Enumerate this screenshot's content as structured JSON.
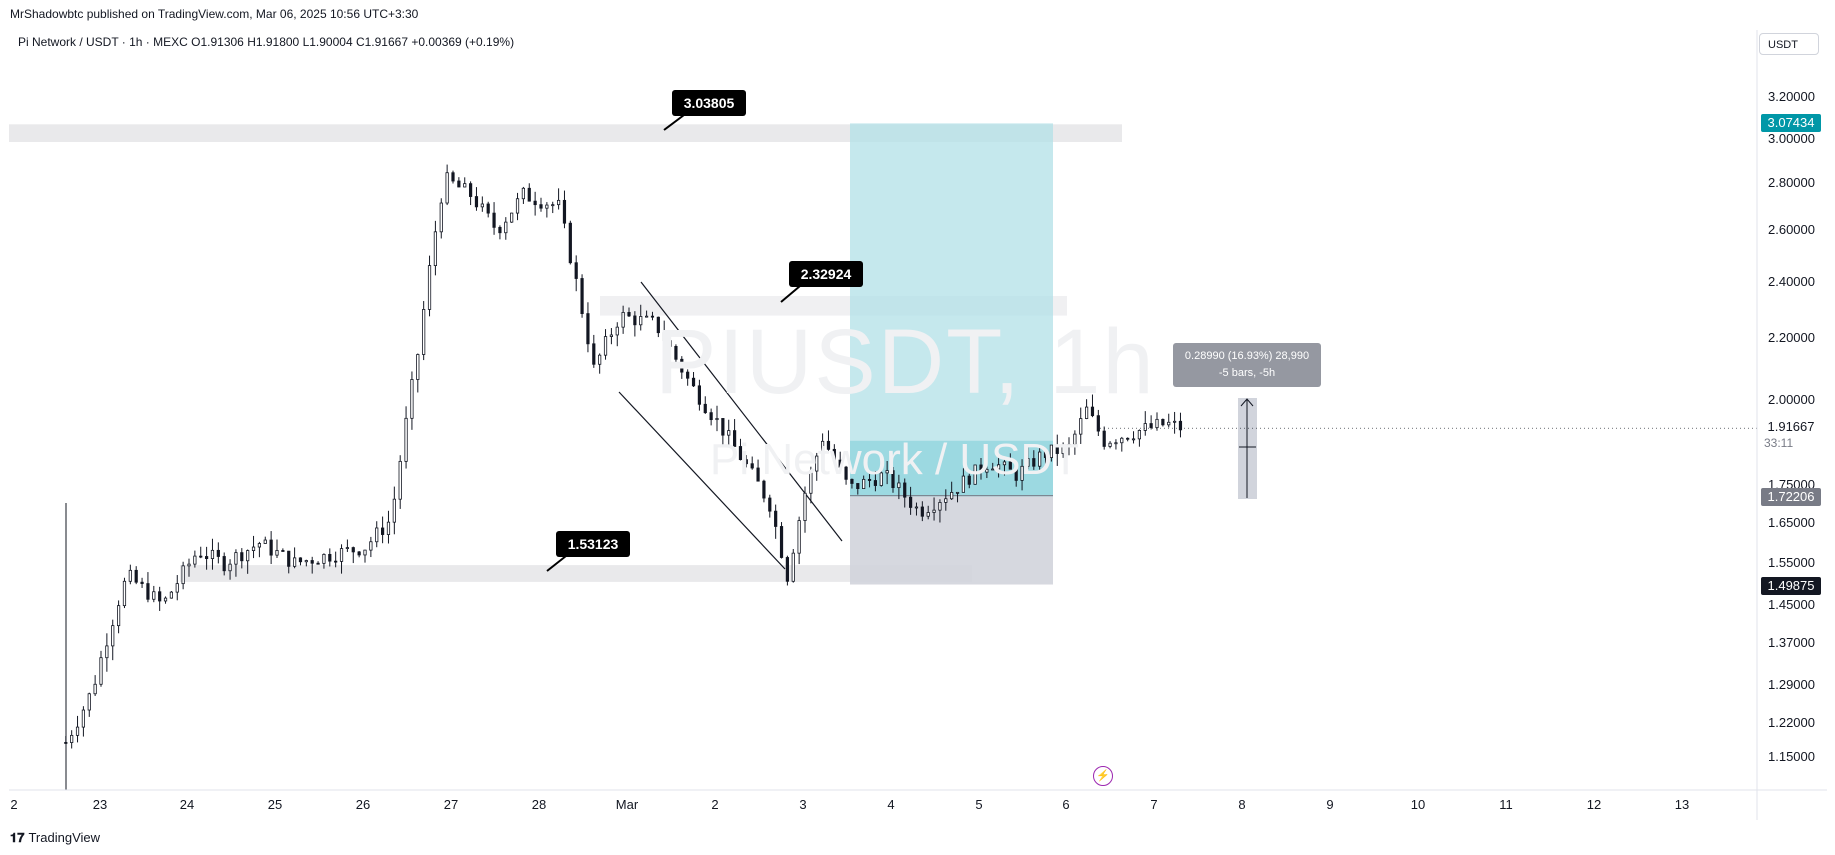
{
  "publisher": "MrShadowbtc published on TradingView.com, Mar 06, 2025 10:56 UTC+3:30",
  "symbol_line": "Pi Network / USDT · 1h · MEXC  O1.91306  H1.91800  L1.90004  C1.91667  +0.00369 (+0.19%)",
  "currency": "USDT",
  "watermark": {
    "ticker": "PIUSDT, 1h",
    "name": "Pi Network / USDT"
  },
  "callouts": {
    "top": "3.03805",
    "mid": "2.32924",
    "low": "1.53123"
  },
  "measure": {
    "line1": "0.28990 (16.93%) 28,990",
    "line2": "-5 bars, -5h"
  },
  "price_labels": {
    "target": "3.07434",
    "current": "1.91667",
    "entry": "1.72206",
    "stop": "1.49875",
    "countdown": "33:11"
  },
  "colors": {
    "target_bg": "#0097a7",
    "entry_bg": "#787b86",
    "stop_bg": "#131722",
    "profit_zone": "#b2e0e7",
    "loss_zone": "#d1d4dc",
    "sr_zone": "#e9e9eb",
    "candle": "#131722"
  },
  "icons": {
    "alert": "lightning-bolt-icon"
  },
  "footer": {
    "brand": "TradingView"
  },
  "chart_data": {
    "type": "candlestick",
    "title": "",
    "y_axis_ticks": [
      "3.20000",
      "3.00000",
      "2.80000",
      "2.60000",
      "2.40000",
      "2.20000",
      "2.00000",
      "1.75000",
      "1.65000",
      "1.55000",
      "1.45000",
      "1.37000",
      "1.29000",
      "1.22000",
      "1.15000"
    ],
    "x_axis_ticks": [
      "2",
      "23",
      "24",
      "25",
      "26",
      "27",
      "28",
      "Mar",
      "2",
      "3",
      "4",
      "5",
      "6",
      "7",
      "8",
      "9",
      "10",
      "11",
      "12",
      "13"
    ],
    "price_path": [
      [
        22.6,
        1.18
      ],
      [
        22.9,
        1.28
      ],
      [
        23.3,
        1.52
      ],
      [
        23.7,
        1.45
      ],
      [
        24.1,
        1.58
      ],
      [
        24.4,
        1.55
      ],
      [
        24.8,
        1.6
      ],
      [
        25.2,
        1.55
      ],
      [
        25.6,
        1.57
      ],
      [
        26.0,
        1.59
      ],
      [
        26.3,
        1.66
      ],
      [
        26.6,
        2.15
      ],
      [
        26.9,
        2.82
      ],
      [
        27.2,
        2.75
      ],
      [
        27.5,
        2.6
      ],
      [
        27.8,
        2.75
      ],
      [
        28.2,
        2.7
      ],
      [
        28.6,
        2.1
      ],
      [
        28.9,
        2.28
      ],
      [
        29.3,
        2.25
      ],
      [
        29.7,
        2.05
      ],
      [
        30.1,
        1.9
      ],
      [
        30.6,
        1.7
      ],
      [
        30.8,
        1.52
      ],
      [
        31.0,
        1.73
      ],
      [
        31.2,
        1.89
      ],
      [
        31.5,
        1.74
      ],
      [
        31.9,
        1.78
      ],
      [
        32.3,
        1.68
      ],
      [
        32.7,
        1.74
      ],
      [
        33.1,
        1.82
      ],
      [
        33.4,
        1.78
      ],
      [
        33.7,
        1.84
      ],
      [
        34.0,
        1.86
      ],
      [
        34.2,
        1.97
      ],
      [
        34.4,
        1.88
      ],
      [
        34.8,
        1.91
      ],
      [
        35.1,
        1.93
      ],
      [
        35.3,
        1.917
      ]
    ],
    "levels": {
      "resistance": 3.03805,
      "mid_zone": 2.32924,
      "support": 1.53123
    },
    "position": {
      "target": 3.07434,
      "entry": 1.72206,
      "stop": 1.49875
    }
  }
}
